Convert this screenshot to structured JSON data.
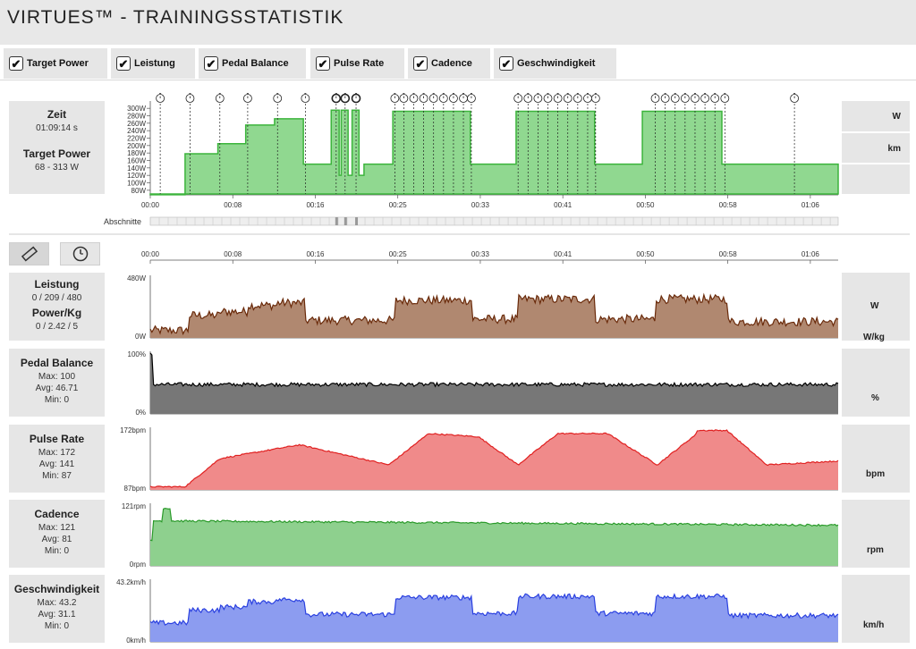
{
  "app": {
    "title": "VIRTUES™ - TRAININGSSTATISTIK"
  },
  "toggles": [
    {
      "label": "Target Power",
      "checked": true
    },
    {
      "label": "Leistung",
      "checked": true
    },
    {
      "label": "Pedal Balance",
      "checked": true
    },
    {
      "label": "Pulse Rate",
      "checked": true
    },
    {
      "label": "Cadence",
      "checked": true
    },
    {
      "label": "Geschwindigkeit",
      "checked": true
    }
  ],
  "overview": {
    "zeit_label": "Zeit",
    "zeit_value": "01:09:14 s",
    "target_label": "Target Power",
    "target_value": "68 - 313 W",
    "unit_w": "W",
    "unit_km": "km",
    "abschnitte_label": "Abschnitte",
    "y_ticks": [
      "300W",
      "280W",
      "260W",
      "240W",
      "220W",
      "200W",
      "180W",
      "160W",
      "140W",
      "120W",
      "100W",
      "80W"
    ],
    "time_ticks": [
      "00:00",
      "00:08",
      "00:16",
      "00:25",
      "00:33",
      "00:41",
      "00:50",
      "00:58",
      "01:06"
    ],
    "color_fill": "#90d890",
    "color_line": "#3cb43c"
  },
  "metrics": {
    "leistung": {
      "title": "Leistung",
      "value": "0 / 209 / 480",
      "title2": "Power/Kg",
      "value2": "0 / 2.42 / 5",
      "unit": "W",
      "unit2": "W/kg",
      "ymax": "480W",
      "ymin": "0W",
      "color_fill": "#b08870",
      "color_line": "#6a2a0a"
    },
    "pedal": {
      "title": "Pedal Balance",
      "max": "Max: 100",
      "avg": "Avg: 46.71",
      "min": "Min: 0",
      "unit": "%",
      "ymax": "100%",
      "ymin": "0%",
      "color_fill": "#777777",
      "color_line": "#000000"
    },
    "pulse": {
      "title": "Pulse Rate",
      "max": "Max: 172",
      "avg": "Avg: 141",
      "min": "Min: 87",
      "unit": "bpm",
      "ymax": "172bpm",
      "ymin": "87bpm",
      "color_fill": "#f08a8a",
      "color_line": "#e02020"
    },
    "cadence": {
      "title": "Cadence",
      "max": "Max: 121",
      "avg": "Avg: 81",
      "min": "Min: 0",
      "unit": "rpm",
      "ymax": "121rpm",
      "ymin": "0rpm",
      "color_fill": "#8ed08e",
      "color_line": "#2a9a2a"
    },
    "speed": {
      "title": "Geschwindigkeit",
      "max": "Max: 43.2",
      "avg": "Avg: 31.1",
      "min": "Min: 0",
      "unit": "km/h",
      "ymax": "43.2km/h",
      "ymin": "0km/h",
      "color_fill": "#8c9cf0",
      "color_line": "#2a40e0"
    }
  },
  "tools": {
    "ruler": "ruler-icon",
    "gauge": "gauge-icon"
  }
}
